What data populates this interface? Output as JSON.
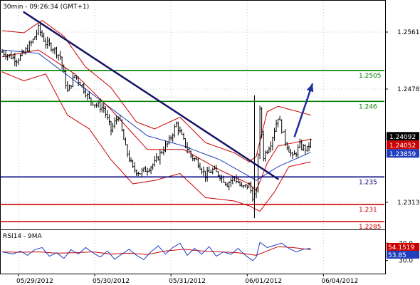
{
  "chart_data": {
    "type": "line",
    "instrument_info": "30min - 09:26:34 (GMT+1)",
    "price_axis": {
      "min": 1.2285,
      "max": 1.2561,
      "tick_labels": [
        "1.2561",
        "1.2478",
        "1.2313"
      ]
    },
    "x_tick_labels": [
      "05/29/2012",
      "05/30/2012",
      "05/31/2012",
      "06/01/2012",
      "06/04/2012"
    ],
    "x_tick_positions": [
      9,
      51,
      93,
      135,
      177
    ],
    "bar_count": 210,
    "levels": [
      {
        "label": "1.2505",
        "value": 1.2505,
        "color": "#008000"
      },
      {
        "label": "1.246",
        "value": 1.246,
        "color": "#008000"
      },
      {
        "label": "1.235",
        "value": 1.235,
        "color": "#000080"
      },
      {
        "label": "1.231",
        "value": 1.231,
        "color": "#cc0000"
      },
      {
        "label": "1.2285",
        "value": 1.2285,
        "color": "#cc0000"
      }
    ],
    "price_tags": [
      {
        "label": "1.24092",
        "value": 1.24092,
        "color": "#000000"
      },
      {
        "label": "1.24052",
        "value": 1.24052,
        "color": "#cc0000"
      },
      {
        "label": "1.23859",
        "value": 1.23859,
        "color": "#1f3fbf"
      }
    ],
    "trendline": {
      "from": {
        "bar": 12,
        "price": 1.259
      },
      "to": {
        "bar": 152,
        "price": 1.2347
      }
    },
    "forecast_arrow": {
      "from": {
        "bar": 161,
        "price": 1.2408
      },
      "to": {
        "bar": 171,
        "price": 1.2486
      }
    },
    "price_series": {
      "anchors": [
        [
          0,
          1.2532
        ],
        [
          8,
          1.2521
        ],
        [
          12,
          1.253
        ],
        [
          17,
          1.2549
        ],
        [
          20,
          1.2566
        ],
        [
          24,
          1.2545
        ],
        [
          28,
          1.2538
        ],
        [
          32,
          1.2525
        ],
        [
          36,
          1.2474
        ],
        [
          40,
          1.2498
        ],
        [
          44,
          1.2483
        ],
        [
          48,
          1.2463
        ],
        [
          52,
          1.2455
        ],
        [
          56,
          1.245
        ],
        [
          60,
          1.2418
        ],
        [
          64,
          1.244
        ],
        [
          68,
          1.2392
        ],
        [
          72,
          1.2362
        ],
        [
          76,
          1.2356
        ],
        [
          80,
          1.2362
        ],
        [
          84,
          1.237
        ],
        [
          88,
          1.2388
        ],
        [
          92,
          1.2402
        ],
        [
          96,
          1.2427
        ],
        [
          100,
          1.2402
        ],
        [
          104,
          1.2381
        ],
        [
          108,
          1.2371
        ],
        [
          112,
          1.2352
        ],
        [
          116,
          1.236
        ],
        [
          120,
          1.2352
        ],
        [
          124,
          1.234
        ],
        [
          128,
          1.235
        ],
        [
          132,
          1.2334
        ],
        [
          136,
          1.2338
        ],
        [
          138,
          1.2322
        ],
        [
          140,
          1.2325
        ],
        [
          142,
          1.2445
        ],
        [
          144,
          1.238
        ],
        [
          148,
          1.24
        ],
        [
          152,
          1.2438
        ],
        [
          156,
          1.2402
        ],
        [
          160,
          1.2378
        ],
        [
          164,
          1.2395
        ],
        [
          168,
          1.239
        ],
        [
          170,
          1.2402
        ]
      ],
      "spike": {
        "bar": 139,
        "high": 1.2469,
        "low": 1.229
      },
      "ma_fast": [
        [
          0,
          1.2525
        ],
        [
          20,
          1.2535
        ],
        [
          40,
          1.25
        ],
        [
          60,
          1.2448
        ],
        [
          80,
          1.239
        ],
        [
          100,
          1.239
        ],
        [
          120,
          1.236
        ],
        [
          136,
          1.234
        ],
        [
          140,
          1.233
        ],
        [
          146,
          1.237
        ],
        [
          152,
          1.2395
        ],
        [
          170,
          1.2405
        ]
      ],
      "ma_slow": [
        [
          0,
          1.2535
        ],
        [
          20,
          1.253
        ],
        [
          40,
          1.249
        ],
        [
          60,
          1.245
        ],
        [
          80,
          1.241
        ],
        [
          100,
          1.2395
        ],
        [
          120,
          1.2375
        ],
        [
          140,
          1.2345
        ],
        [
          152,
          1.2365
        ],
        [
          170,
          1.2386
        ]
      ],
      "bb_upper": [
        [
          0,
          1.2563
        ],
        [
          12,
          1.256
        ],
        [
          22,
          1.2578
        ],
        [
          34,
          1.2555
        ],
        [
          46,
          1.251
        ],
        [
          60,
          1.248
        ],
        [
          74,
          1.243
        ],
        [
          84,
          1.242
        ],
        [
          98,
          1.2437
        ],
        [
          112,
          1.24
        ],
        [
          128,
          1.2385
        ],
        [
          136,
          1.2372
        ],
        [
          140,
          1.238
        ],
        [
          146,
          1.2445
        ],
        [
          152,
          1.2453
        ],
        [
          170,
          1.244
        ]
      ],
      "bb_lower": [
        [
          0,
          1.2503
        ],
        [
          12,
          1.249
        ],
        [
          24,
          1.25
        ],
        [
          36,
          1.244
        ],
        [
          48,
          1.242
        ],
        [
          60,
          1.2375
        ],
        [
          72,
          1.234
        ],
        [
          84,
          1.2345
        ],
        [
          98,
          1.2355
        ],
        [
          112,
          1.232
        ],
        [
          128,
          1.2315
        ],
        [
          136,
          1.2308
        ],
        [
          142,
          1.23
        ],
        [
          150,
          1.2328
        ],
        [
          158,
          1.2365
        ],
        [
          170,
          1.2372
        ]
      ]
    },
    "rsi_panel": {
      "title": "RSI14 - 9MA",
      "tick_labels": [
        "70.0",
        "30.0"
      ],
      "min": 0,
      "max": 100,
      "ticks": [
        70,
        30
      ],
      "current_values": [
        {
          "label": "54.1519",
          "value": 54.15,
          "color": "#cc0000"
        },
        {
          "label": "53.85",
          "value": 53.85,
          "color": "#1f3fbf"
        }
      ],
      "rsi": [
        [
          0,
          50
        ],
        [
          6,
          45
        ],
        [
          10,
          52
        ],
        [
          14,
          42
        ],
        [
          18,
          55
        ],
        [
          22,
          60
        ],
        [
          26,
          40
        ],
        [
          30,
          48
        ],
        [
          34,
          35
        ],
        [
          38,
          55
        ],
        [
          42,
          45
        ],
        [
          46,
          60
        ],
        [
          50,
          48
        ],
        [
          54,
          38
        ],
        [
          58,
          52
        ],
        [
          62,
          33
        ],
        [
          66,
          45
        ],
        [
          70,
          56
        ],
        [
          74,
          42
        ],
        [
          78,
          32
        ],
        [
          82,
          50
        ],
        [
          86,
          64
        ],
        [
          90,
          45
        ],
        [
          94,
          60
        ],
        [
          98,
          70
        ],
        [
          102,
          42
        ],
        [
          106,
          58
        ],
        [
          110,
          45
        ],
        [
          114,
          62
        ],
        [
          118,
          40
        ],
        [
          122,
          50
        ],
        [
          126,
          44
        ],
        [
          130,
          58
        ],
        [
          134,
          42
        ],
        [
          138,
          30
        ],
        [
          140,
          38
        ],
        [
          142,
          72
        ],
        [
          146,
          60
        ],
        [
          150,
          65
        ],
        [
          154,
          70
        ],
        [
          158,
          58
        ],
        [
          162,
          50
        ],
        [
          166,
          56
        ],
        [
          170,
          58
        ]
      ],
      "rsi_ma": [
        [
          0,
          50
        ],
        [
          10,
          49
        ],
        [
          20,
          50
        ],
        [
          30,
          47
        ],
        [
          40,
          48
        ],
        [
          50,
          50
        ],
        [
          60,
          45
        ],
        [
          70,
          47
        ],
        [
          80,
          44
        ],
        [
          90,
          52
        ],
        [
          100,
          56
        ],
        [
          110,
          52
        ],
        [
          120,
          50
        ],
        [
          130,
          48
        ],
        [
          140,
          42
        ],
        [
          146,
          52
        ],
        [
          152,
          62
        ],
        [
          160,
          60
        ],
        [
          170,
          55
        ]
      ]
    }
  }
}
